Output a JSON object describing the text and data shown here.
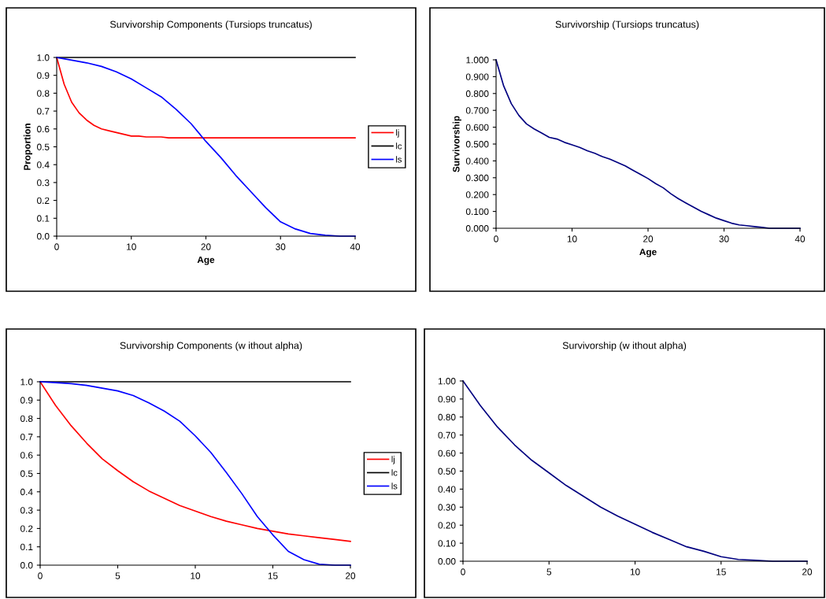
{
  "chart_data": [
    {
      "type": "line",
      "title": "Survivorship Components (Tursiops truncatus)",
      "xlabel": "Age",
      "ylabel": "Proportion",
      "legend": "right",
      "xlim": [
        0,
        40
      ],
      "xticks": [
        0,
        10,
        20,
        30,
        40
      ],
      "ylim": [
        0,
        1
      ],
      "yticks": [
        {
          "value": 0,
          "label": "0.0"
        },
        {
          "value": 0.1,
          "label": "0.1"
        },
        {
          "value": 0.2,
          "label": "0.2"
        },
        {
          "value": 0.3,
          "label": "0.3"
        },
        {
          "value": 0.4,
          "label": "0.4"
        },
        {
          "value": 0.5,
          "label": "0.5"
        },
        {
          "value": 0.6,
          "label": "0.6"
        },
        {
          "value": 0.7,
          "label": "0.7"
        },
        {
          "value": 0.8,
          "label": "0.8"
        },
        {
          "value": 0.9,
          "label": "0.9"
        },
        {
          "value": 1,
          "label": "1.0"
        }
      ],
      "series": [
        {
          "name": "lj",
          "color": "#ff0000",
          "x": [
            0,
            1,
            2,
            3,
            4,
            5,
            6,
            7,
            8,
            9,
            10,
            11,
            12,
            13,
            14,
            15,
            16,
            20,
            25,
            30,
            35,
            40
          ],
          "values": [
            1,
            0.85,
            0.75,
            0.69,
            0.65,
            0.62,
            0.6,
            0.59,
            0.58,
            0.57,
            0.56,
            0.56,
            0.555,
            0.555,
            0.555,
            0.55,
            0.55,
            0.55,
            0.55,
            0.55,
            0.55,
            0.55
          ]
        },
        {
          "name": "lc",
          "color": "#000000",
          "x": [
            0,
            40
          ],
          "values": [
            1,
            1
          ]
        },
        {
          "name": "ls",
          "color": "#0000ff",
          "x": [
            0,
            2,
            4,
            6,
            8,
            10,
            12,
            14,
            16,
            18,
            20,
            22,
            24,
            26,
            28,
            30,
            32,
            34,
            36,
            38,
            40
          ],
          "values": [
            1,
            0.985,
            0.97,
            0.95,
            0.92,
            0.88,
            0.83,
            0.78,
            0.71,
            0.63,
            0.53,
            0.44,
            0.34,
            0.25,
            0.16,
            0.08,
            0.04,
            0.015,
            0.005,
            0,
            0
          ]
        }
      ]
    },
    {
      "type": "line",
      "title": "Survivorship (Tursiops truncatus)",
      "xlabel": "Age",
      "ylabel": "Survivorship",
      "xlim": [
        0,
        40
      ],
      "xticks": [
        0,
        10,
        20,
        30,
        40
      ],
      "ylim": [
        0,
        1
      ],
      "yticks": [
        {
          "value": 0,
          "label": "0.000"
        },
        {
          "value": 0.1,
          "label": "0.100"
        },
        {
          "value": 0.2,
          "label": "0.200"
        },
        {
          "value": 0.3,
          "label": "0.300"
        },
        {
          "value": 0.4,
          "label": "0.400"
        },
        {
          "value": 0.5,
          "label": "0.500"
        },
        {
          "value": 0.6,
          "label": "0.600"
        },
        {
          "value": 0.7,
          "label": "0.700"
        },
        {
          "value": 0.8,
          "label": "0.800"
        },
        {
          "value": 0.9,
          "label": "0.900"
        },
        {
          "value": 1,
          "label": "1.000"
        }
      ],
      "series": [
        {
          "color": "#000080",
          "x": [
            0,
            1,
            2,
            3,
            4,
            5,
            6,
            7,
            8,
            9,
            10,
            11,
            12,
            13,
            14,
            15,
            16,
            17,
            18,
            19,
            20,
            21,
            22,
            23,
            24,
            25,
            26,
            27,
            28,
            29,
            30,
            31,
            32,
            33,
            34,
            35,
            36,
            37,
            38,
            39,
            40
          ],
          "values": [
            1,
            0.845,
            0.74,
            0.67,
            0.62,
            0.59,
            0.565,
            0.54,
            0.53,
            0.51,
            0.495,
            0.48,
            0.46,
            0.445,
            0.425,
            0.41,
            0.39,
            0.37,
            0.345,
            0.32,
            0.295,
            0.265,
            0.24,
            0.205,
            0.175,
            0.15,
            0.125,
            0.1,
            0.08,
            0.06,
            0.045,
            0.03,
            0.02,
            0.015,
            0.01,
            0.005,
            0,
            0,
            0,
            0,
            0
          ]
        }
      ]
    },
    {
      "type": "line",
      "title": "Survivorship Components (w ithout alpha)",
      "legend": "right",
      "xlim": [
        0,
        20
      ],
      "xticks": [
        0,
        5,
        10,
        15,
        20
      ],
      "ylim": [
        0,
        1
      ],
      "yticks": [
        {
          "value": 0,
          "label": "0.0"
        },
        {
          "value": 0.1,
          "label": "0.1"
        },
        {
          "value": 0.2,
          "label": "0.2"
        },
        {
          "value": 0.3,
          "label": "0.3"
        },
        {
          "value": 0.4,
          "label": "0.4"
        },
        {
          "value": 0.5,
          "label": "0.5"
        },
        {
          "value": 0.6,
          "label": "0.6"
        },
        {
          "value": 0.7,
          "label": "0.7"
        },
        {
          "value": 0.8,
          "label": "0.8"
        },
        {
          "value": 0.9,
          "label": "0.9"
        },
        {
          "value": 1,
          "label": "1.0"
        }
      ],
      "series": [
        {
          "name": "lj",
          "color": "#ff0000",
          "x": [
            0,
            1,
            2,
            3,
            4,
            5,
            6,
            7,
            8,
            9,
            10,
            11,
            12,
            13,
            14,
            15,
            16,
            17,
            18,
            19,
            20
          ],
          "values": [
            1,
            0.87,
            0.76,
            0.665,
            0.58,
            0.515,
            0.455,
            0.405,
            0.365,
            0.325,
            0.295,
            0.265,
            0.24,
            0.22,
            0.2,
            0.185,
            0.17,
            0.16,
            0.15,
            0.14,
            0.13
          ]
        },
        {
          "name": "lc",
          "color": "#000000",
          "x": [
            0,
            20
          ],
          "values": [
            1,
            1
          ]
        },
        {
          "name": "ls",
          "color": "#0000ff",
          "x": [
            0,
            1,
            2,
            3,
            4,
            5,
            6,
            7,
            8,
            9,
            10,
            11,
            12,
            13,
            14,
            15,
            16,
            17,
            18,
            19,
            20
          ],
          "values": [
            1,
            0.995,
            0.99,
            0.98,
            0.965,
            0.95,
            0.925,
            0.885,
            0.84,
            0.785,
            0.705,
            0.615,
            0.505,
            0.39,
            0.265,
            0.165,
            0.075,
            0.03,
            0.005,
            0,
            0
          ]
        }
      ]
    },
    {
      "type": "line",
      "title": "Survivorship (w ithout alpha)",
      "xlim": [
        0,
        20
      ],
      "xticks": [
        0,
        5,
        10,
        15,
        20
      ],
      "ylim": [
        0,
        1
      ],
      "yticks": [
        {
          "value": 0,
          "label": "0.00"
        },
        {
          "value": 0.1,
          "label": "0.10"
        },
        {
          "value": 0.2,
          "label": "0.20"
        },
        {
          "value": 0.3,
          "label": "0.30"
        },
        {
          "value": 0.4,
          "label": "0.40"
        },
        {
          "value": 0.5,
          "label": "0.50"
        },
        {
          "value": 0.6,
          "label": "0.60"
        },
        {
          "value": 0.7,
          "label": "0.70"
        },
        {
          "value": 0.8,
          "label": "0.80"
        },
        {
          "value": 0.9,
          "label": "0.90"
        },
        {
          "value": 1,
          "label": "1.00"
        }
      ],
      "series": [
        {
          "color": "#000080",
          "x": [
            0,
            1,
            2,
            3,
            4,
            5,
            6,
            7,
            8,
            9,
            10,
            11,
            12,
            13,
            14,
            15,
            16,
            17,
            18,
            19,
            20
          ],
          "values": [
            1,
            0.865,
            0.745,
            0.645,
            0.56,
            0.49,
            0.42,
            0.36,
            0.3,
            0.25,
            0.205,
            0.16,
            0.12,
            0.08,
            0.055,
            0.025,
            0.01,
            0.005,
            0,
            0,
            0
          ]
        }
      ]
    }
  ]
}
